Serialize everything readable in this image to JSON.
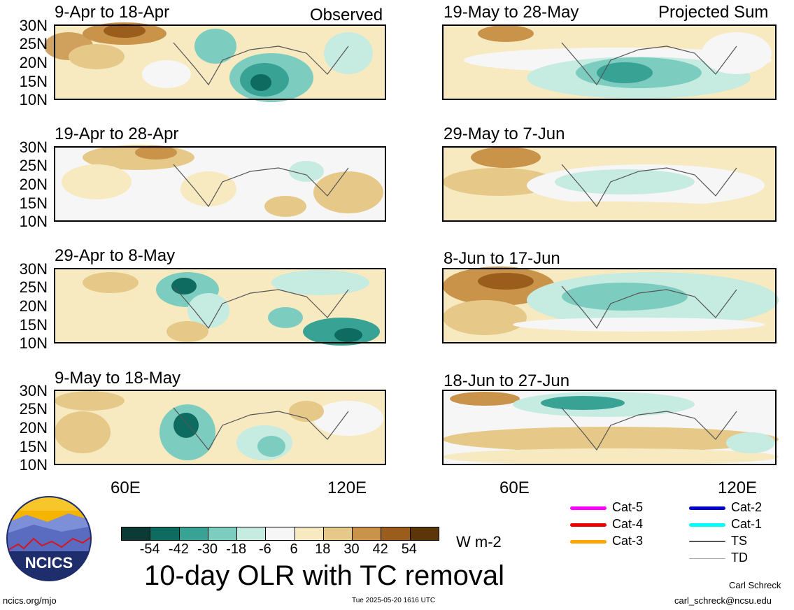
{
  "observed_label": "Observed",
  "projected_label": "Projected Sum",
  "lat_ticks": [
    "30N",
    "25N",
    "20N",
    "15N",
    "10N"
  ],
  "lon_ticks": [
    "60E",
    "120E"
  ],
  "panels_left": [
    {
      "title": "9-Apr to 18-Apr"
    },
    {
      "title": "19-Apr to 28-Apr"
    },
    {
      "title": "29-Apr to 8-May"
    },
    {
      "title": "9-May to 18-May"
    }
  ],
  "panels_right": [
    {
      "title": "19-May to 28-May"
    },
    {
      "title": "29-May to 7-Jun"
    },
    {
      "title": "8-Jun to 17-Jun"
    },
    {
      "title": "18-Jun to 27-Jun"
    }
  ],
  "colorbar": {
    "colors": [
      "#0b3b34",
      "#0d6b60",
      "#38a294",
      "#7ccdbf",
      "#c6ebe1",
      "#f6f6f6",
      "#f7e9c0",
      "#e6c988",
      "#c9944a",
      "#9a5d1c",
      "#5c3608"
    ],
    "labels": [
      "-54",
      "-42",
      "-30",
      "-18",
      "-6",
      "6",
      "18",
      "30",
      "42",
      "54"
    ],
    "units": "W m-2"
  },
  "main_title": "10-day OLR with TC removal",
  "legend": [
    {
      "label": "Cat-5",
      "color": "#ff00ff"
    },
    {
      "label": "Cat-4",
      "color": "#ee0000"
    },
    {
      "label": "Cat-3",
      "color": "#ffa500"
    },
    {
      "label": "Cat-2",
      "color": "#0000cc"
    },
    {
      "label": "Cat-1",
      "color": "#00ffff"
    },
    {
      "label": "TS",
      "color": "#555555"
    },
    {
      "label": "TD",
      "color": "#aaaaaa"
    }
  ],
  "logo_text": "NCICS",
  "footer_left": "ncics.org/mjo",
  "timestamp": "Tue 2025-05-20 1616 UTC",
  "author": "Carl Schreck",
  "email": "carl_schreck@ncsu.edu"
}
